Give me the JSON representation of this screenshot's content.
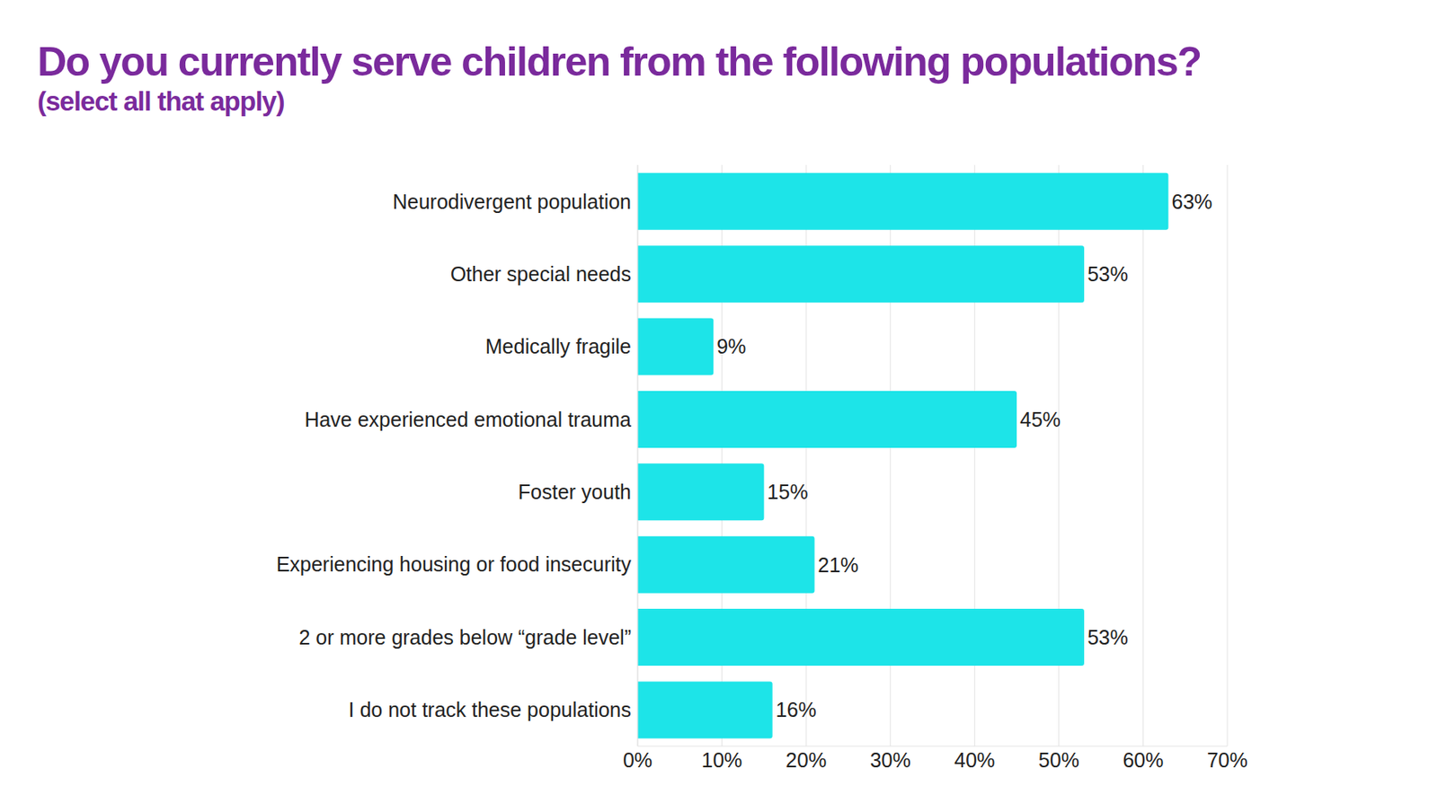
{
  "chart_data": {
    "type": "bar",
    "title": "Do you currently serve children from the following populations?",
    "subtitle": "(select all that apply)",
    "orientation": "horizontal",
    "categories": [
      "Neurodivergent population",
      "Other special needs",
      "Medically fragile",
      "Have experienced emotional trauma",
      "Foster youth",
      "Experiencing housing or food insecurity",
      "2 or more grades below “grade level”",
      "I do not track these populations"
    ],
    "values": [
      63,
      53,
      9,
      45,
      15,
      21,
      53,
      16
    ],
    "value_labels": [
      "63%",
      "53%",
      "9%",
      "45%",
      "15%",
      "21%",
      "53%",
      "16%"
    ],
    "data_labels": true,
    "color": "#1de4e8",
    "xlim": [
      0,
      70
    ],
    "xticks": [
      {
        "value": 0,
        "label": "0%"
      },
      {
        "value": 10,
        "label": "10%"
      },
      {
        "value": 20,
        "label": "20%"
      },
      {
        "value": 30,
        "label": "30%"
      },
      {
        "value": 40,
        "label": "40%"
      },
      {
        "value": 50,
        "label": "50%"
      },
      {
        "value": 60,
        "label": "60%"
      },
      {
        "value": 70,
        "label": "70%"
      }
    ],
    "grid": true
  }
}
